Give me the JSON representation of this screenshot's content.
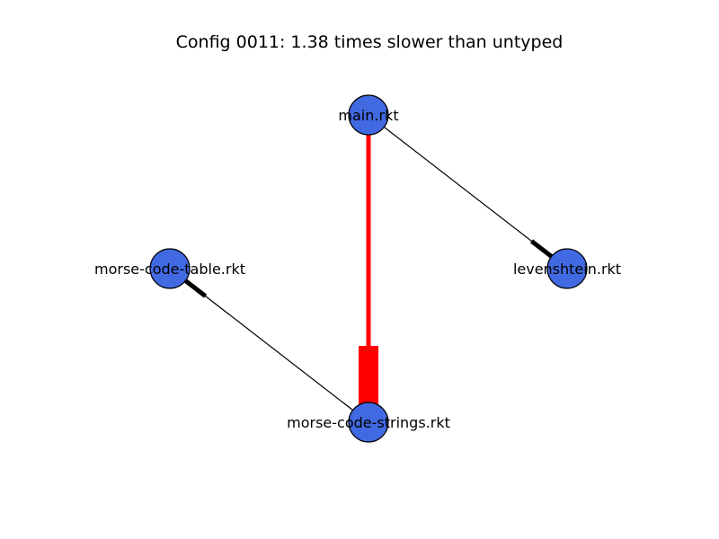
{
  "title": "Config 0011: 1.38 times slower than untyped",
  "colors": {
    "node_fill": "#4169E1",
    "node_stroke": "#000000",
    "edge_normal": "#000000",
    "edge_highlight": "#FF0000"
  },
  "nodes": [
    {
      "id": "main",
      "label": "main.rkt"
    },
    {
      "id": "levenshtein",
      "label": "levenshtein.rkt"
    },
    {
      "id": "table",
      "label": "morse-code-table.rkt"
    },
    {
      "id": "strings",
      "label": "morse-code-strings.rkt"
    }
  ],
  "edges": [
    {
      "from": "main",
      "to": "strings",
      "color": "highlight"
    },
    {
      "from": "main",
      "to": "levenshtein",
      "color": "normal"
    },
    {
      "from": "strings",
      "to": "table",
      "color": "normal"
    }
  ]
}
